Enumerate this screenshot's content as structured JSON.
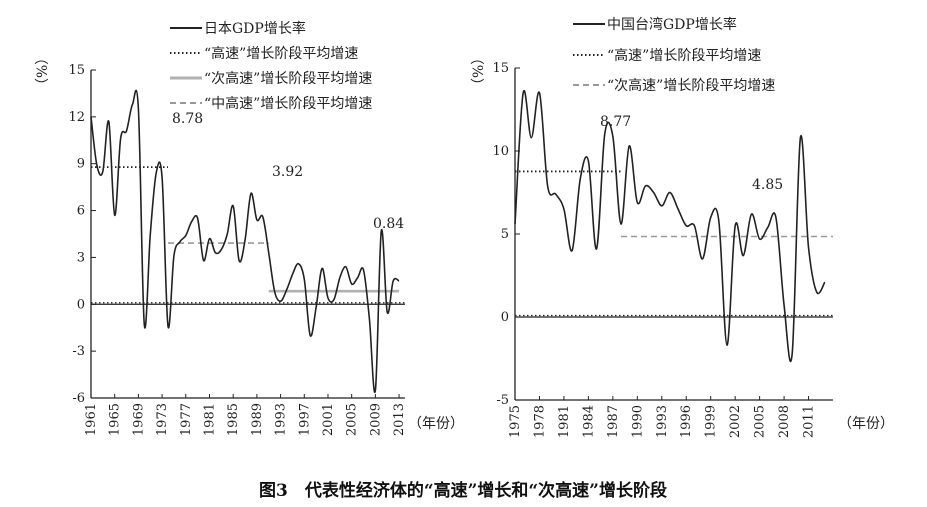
{
  "caption": "图3　代表性经济体的“高速”增长和“次高速”增长阶段",
  "colors": {
    "series": "#222222",
    "high": "#222222",
    "mid": "#b0b0b0",
    "sub": "#999999"
  },
  "chart_data": [
    {
      "type": "line",
      "ylabel": "（%）",
      "xlabel": "（年份）",
      "ylim": [
        -6,
        15
      ],
      "yticks": [
        -6,
        -3,
        0,
        3,
        6,
        9,
        12,
        15
      ],
      "xlim": [
        1961,
        2014
      ],
      "xticks": [
        1961,
        1965,
        1969,
        1973,
        1977,
        1981,
        1985,
        1989,
        1993,
        1997,
        2001,
        2005,
        2009,
        2013
      ],
      "legend_placement": "top",
      "series": [
        {
          "name": "日本GDP增长率",
          "x": [
            1961,
            1962,
            1963,
            1964,
            1965,
            1966,
            1967,
            1968,
            1969,
            1970,
            1971,
            1972,
            1973,
            1974,
            1975,
            1976,
            1977,
            1978,
            1979,
            1980,
            1981,
            1982,
            1983,
            1984,
            1985,
            1986,
            1987,
            1988,
            1989,
            1990,
            1991,
            1992,
            1993,
            1994,
            1995,
            1996,
            1997,
            1998,
            1999,
            2000,
            2001,
            2002,
            2003,
            2004,
            2005,
            2006,
            2007,
            2008,
            2009,
            2010,
            2011,
            2012,
            2013
          ],
          "y": [
            12.0,
            8.9,
            8.5,
            11.7,
            5.7,
            10.6,
            11.1,
            12.8,
            12.5,
            -1.3,
            4.4,
            8.4,
            8.1,
            -1.4,
            3.1,
            4.0,
            4.4,
            5.3,
            5.5,
            2.8,
            4.2,
            3.3,
            3.5,
            4.5,
            6.3,
            2.8,
            4.1,
            7.1,
            5.4,
            5.6,
            3.3,
            0.8,
            0.2,
            0.9,
            1.9,
            2.6,
            1.6,
            -2.0,
            -0.2,
            2.3,
            0.4,
            0.3,
            1.7,
            2.4,
            1.3,
            1.7,
            2.2,
            -1.0,
            -5.5,
            4.7,
            -0.5,
            1.5,
            1.5
          ]
        }
      ],
      "stages": [
        {
          "name": "“高速”增长阶段平均增速",
          "value": 8.78,
          "from": 1961,
          "to": 1974,
          "style": "dotted"
        },
        {
          "name": "“中高速”增长阶段平均增速",
          "value": 3.92,
          "from": 1974,
          "to": 1991,
          "style": "dashed"
        },
        {
          "name": "“次高速”增长阶段平均增速",
          "value": 0.84,
          "from": 1991,
          "to": 2013,
          "style": "solid-gray"
        }
      ],
      "annotations": [
        "8.78",
        "3.92",
        "0.84"
      ]
    },
    {
      "type": "line",
      "ylabel": "（%）",
      "xlabel": "（年份）",
      "ylim": [
        -5,
        15
      ],
      "yticks": [
        -5,
        0,
        5,
        10,
        15
      ],
      "xlim": [
        1975,
        2014
      ],
      "xticks": [
        1975,
        1978,
        1981,
        1984,
        1987,
        1990,
        1993,
        1996,
        1999,
        2002,
        2005,
        2008,
        2011
      ],
      "legend_placement": "top",
      "series": [
        {
          "name": "中国台湾GDP增长率",
          "x": [
            1975,
            1976,
            1977,
            1978,
            1979,
            1980,
            1981,
            1982,
            1983,
            1984,
            1985,
            1986,
            1987,
            1988,
            1989,
            1990,
            1991,
            1992,
            1993,
            1994,
            1995,
            1996,
            1997,
            1998,
            1999,
            2000,
            2001,
            2002,
            2003,
            2004,
            2005,
            2006,
            2007,
            2008,
            2009,
            2010,
            2011,
            2012,
            2013
          ],
          "y": [
            5.6,
            13.5,
            10.8,
            13.5,
            7.9,
            7.4,
            6.5,
            4.0,
            8.3,
            9.4,
            4.1,
            11.0,
            10.9,
            5.6,
            10.3,
            6.9,
            7.9,
            7.5,
            6.7,
            7.5,
            6.5,
            5.5,
            5.5,
            3.5,
            6.0,
            5.8,
            -1.7,
            5.5,
            3.7,
            6.2,
            4.7,
            5.4,
            6.0,
            0.7,
            -2.2,
            10.8,
            4.2,
            1.5,
            2.1
          ]
        }
      ],
      "stages": [
        {
          "name": "“高速”增长阶段平均增速",
          "value": 8.77,
          "from": 1975,
          "to": 1988,
          "style": "dotted"
        },
        {
          "name": "“次高速”增长阶段平均增速",
          "value": 4.85,
          "from": 1988,
          "to": 2014,
          "style": "dashed"
        }
      ],
      "annotations": [
        "8.77",
        "4.85"
      ]
    }
  ]
}
